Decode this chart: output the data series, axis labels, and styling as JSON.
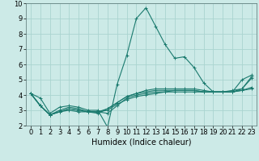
{
  "title": "",
  "xlabel": "Humidex (Indice chaleur)",
  "background_color": "#cceae7",
  "grid_color": "#aad4d0",
  "line_color": "#1a7a6e",
  "xlim": [
    -0.5,
    23.5
  ],
  "ylim": [
    2,
    10
  ],
  "yticks": [
    2,
    3,
    4,
    5,
    6,
    7,
    8,
    9,
    10
  ],
  "xticks": [
    0,
    1,
    2,
    3,
    4,
    5,
    6,
    7,
    8,
    9,
    10,
    11,
    12,
    13,
    14,
    15,
    16,
    17,
    18,
    19,
    20,
    21,
    22,
    23
  ],
  "lines": [
    [
      4.1,
      3.8,
      2.8,
      3.2,
      3.3,
      3.2,
      3.0,
      3.0,
      1.9,
      4.7,
      6.6,
      9.0,
      9.7,
      8.5,
      7.3,
      6.4,
      6.5,
      5.8,
      4.8,
      4.2,
      4.2,
      4.2,
      5.0,
      5.3
    ],
    [
      4.1,
      3.3,
      2.7,
      3.0,
      3.2,
      3.1,
      2.9,
      2.9,
      2.8,
      3.3,
      3.8,
      4.0,
      4.1,
      4.2,
      4.2,
      4.3,
      4.3,
      4.3,
      4.2,
      4.2,
      4.2,
      4.2,
      4.3,
      4.4
    ],
    [
      4.1,
      3.3,
      2.7,
      2.9,
      3.1,
      3.0,
      2.9,
      2.9,
      3.0,
      3.4,
      3.7,
      3.9,
      4.0,
      4.1,
      4.2,
      4.2,
      4.2,
      4.2,
      4.2,
      4.2,
      4.2,
      4.2,
      4.3,
      4.5
    ],
    [
      4.1,
      3.3,
      2.7,
      2.9,
      3.1,
      3.0,
      2.9,
      2.9,
      3.1,
      3.5,
      3.9,
      4.1,
      4.2,
      4.3,
      4.3,
      4.3,
      4.3,
      4.3,
      4.2,
      4.2,
      4.2,
      4.3,
      4.4,
      5.2
    ],
    [
      4.1,
      3.3,
      2.7,
      2.9,
      3.0,
      2.9,
      2.9,
      2.8,
      3.1,
      3.5,
      3.9,
      4.1,
      4.3,
      4.4,
      4.4,
      4.4,
      4.4,
      4.4,
      4.3,
      4.2,
      4.2,
      4.2,
      4.4,
      5.1
    ]
  ],
  "tick_fontsize": 6,
  "xlabel_fontsize": 7
}
